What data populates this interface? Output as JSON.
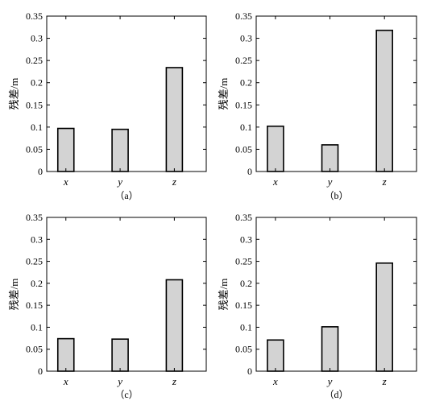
{
  "chart_data": [
    {
      "type": "bar",
      "caption": "（a）",
      "ylabel": "残差/m",
      "categories": [
        "x",
        "y",
        "z"
      ],
      "values": [
        0.097,
        0.095,
        0.234
      ],
      "ylim": [
        0,
        0.35
      ],
      "yticks": [
        "0",
        "0.05",
        "0.1",
        "0.15",
        "0.2",
        "0.25",
        "0.3",
        "0.35"
      ],
      "bar_color": "#d3d3d3",
      "grid": false
    },
    {
      "type": "bar",
      "caption": "（b）",
      "ylabel": "残差/m",
      "categories": [
        "x",
        "y",
        "z"
      ],
      "values": [
        0.102,
        0.06,
        0.318
      ],
      "ylim": [
        0,
        0.35
      ],
      "yticks": [
        "0",
        "0.05",
        "0.1",
        "0.15",
        "0.2",
        "0.25",
        "0.3",
        "0.35"
      ],
      "bar_color": "#d3d3d3",
      "grid": false
    },
    {
      "type": "bar",
      "caption": "（c）",
      "ylabel": "残差/m",
      "categories": [
        "x",
        "y",
        "z"
      ],
      "values": [
        0.074,
        0.073,
        0.208
      ],
      "ylim": [
        0,
        0.35
      ],
      "yticks": [
        "0",
        "0.05",
        "0.1",
        "0.15",
        "0.2",
        "0.25",
        "0.3",
        "0.35"
      ],
      "bar_color": "#d3d3d3",
      "grid": false
    },
    {
      "type": "bar",
      "caption": "（d）",
      "ylabel": "残差/m",
      "categories": [
        "x",
        "y",
        "z"
      ],
      "values": [
        0.071,
        0.101,
        0.246
      ],
      "ylim": [
        0,
        0.35
      ],
      "yticks": [
        "0",
        "0.05",
        "0.1",
        "0.15",
        "0.2",
        "0.25",
        "0.3",
        "0.35"
      ],
      "bar_color": "#d3d3d3",
      "grid": false
    }
  ]
}
